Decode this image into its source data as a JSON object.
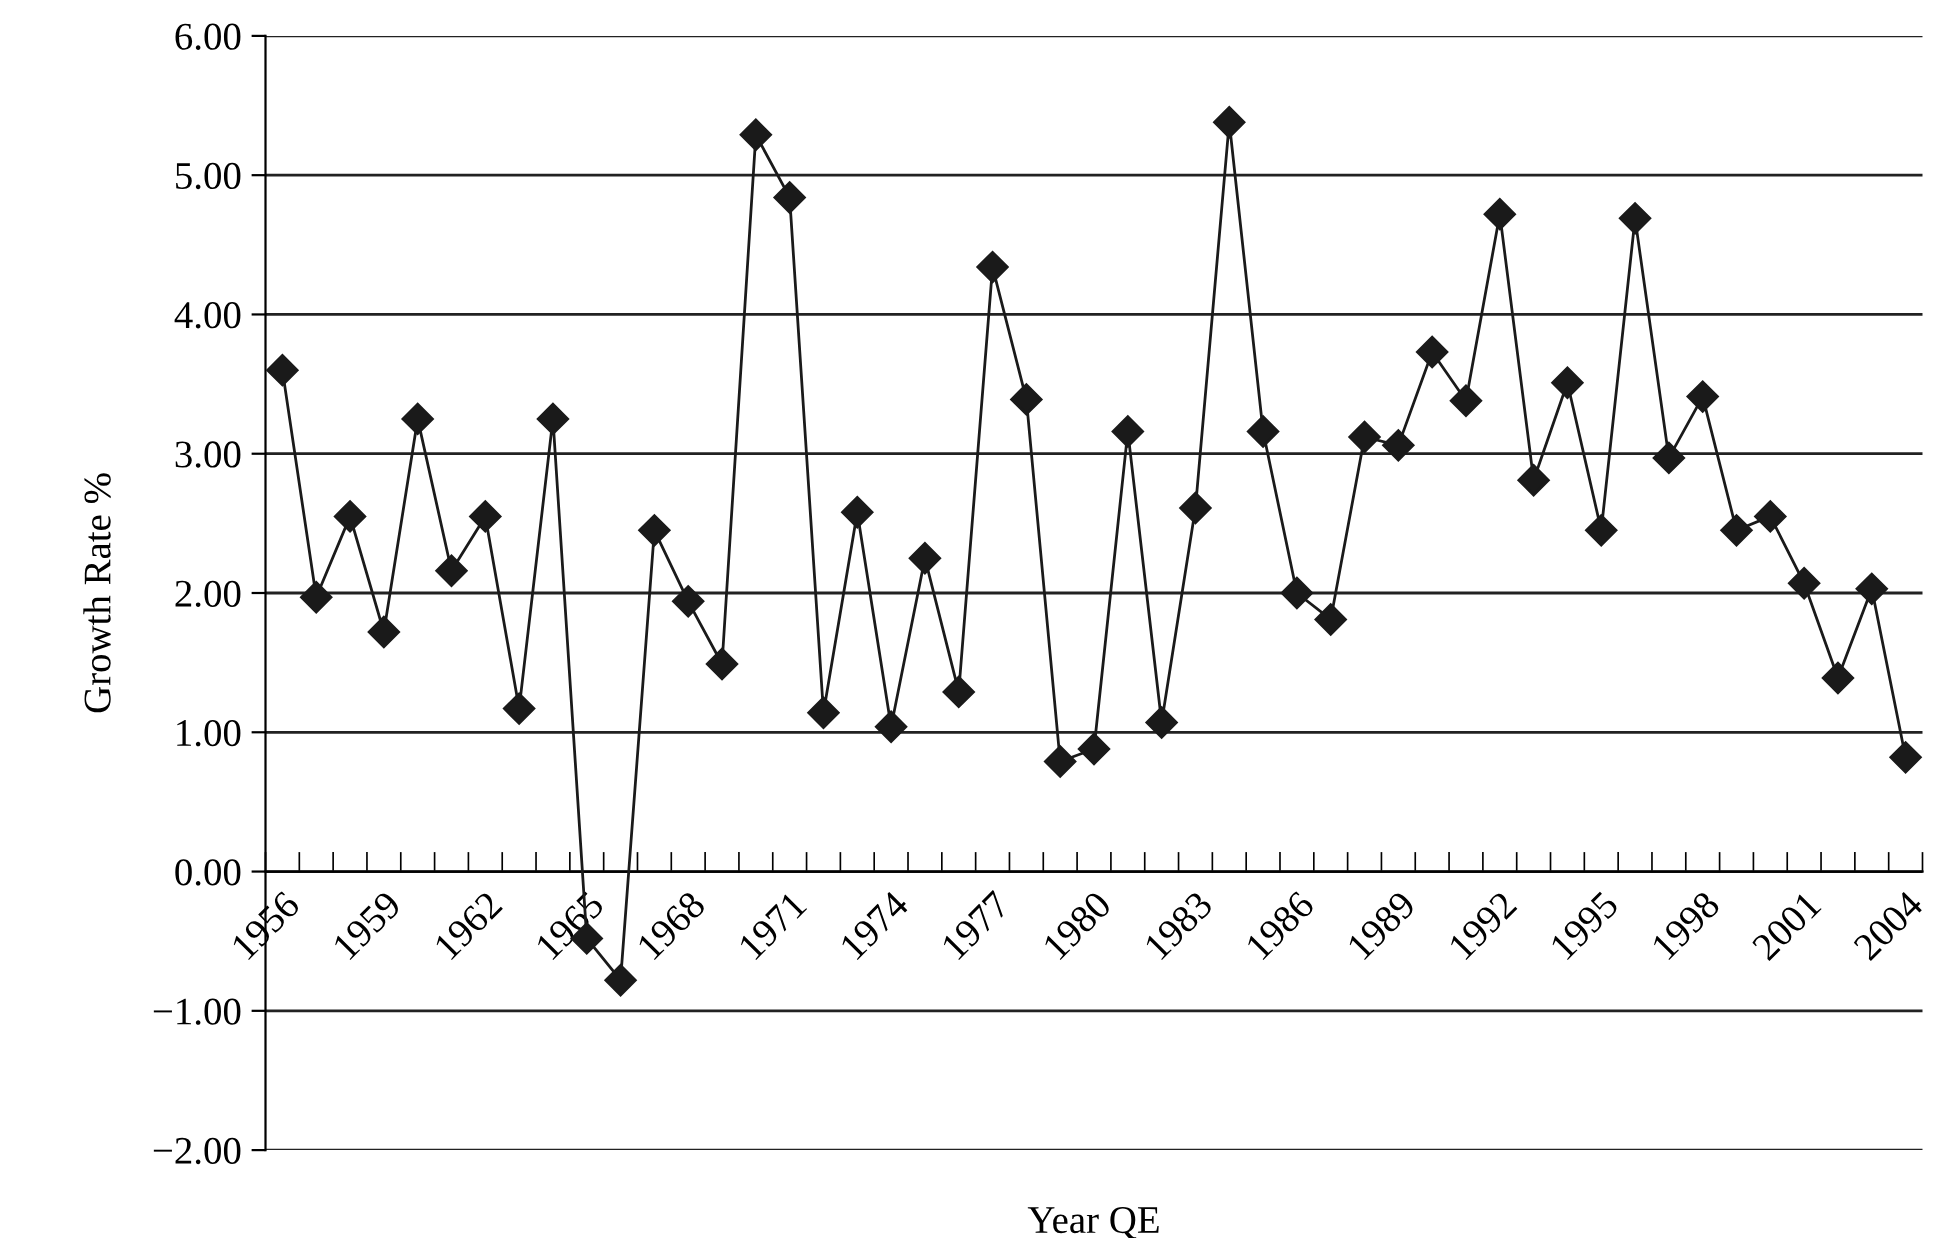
{
  "chart_data": {
    "type": "line",
    "xlabel": "Year QE",
    "ylabel": "Growth Rate %",
    "categories": [
      "1956",
      null,
      null,
      "1959",
      null,
      null,
      "1962",
      null,
      null,
      "1965",
      null,
      null,
      "1968",
      null,
      null,
      "1971",
      null,
      null,
      "1974",
      null,
      null,
      "1977",
      null,
      null,
      "1980",
      null,
      null,
      "1983",
      null,
      null,
      "1986",
      null,
      null,
      "1989",
      null,
      null,
      "1992",
      null,
      null,
      "1995",
      null,
      null,
      "1998",
      null,
      null,
      "2001",
      null,
      null,
      "2004"
    ],
    "series": [
      {
        "color": "#1a1a1a",
        "values": [
          3.6,
          1.97,
          2.55,
          1.72,
          3.25,
          2.16,
          2.55,
          1.17,
          3.25,
          -0.48,
          -0.78,
          2.45,
          1.94,
          1.49,
          5.29,
          4.84,
          1.14,
          2.58,
          1.04,
          2.25,
          1.29,
          4.34,
          3.39,
          0.79,
          0.88,
          3.16,
          1.07,
          2.61,
          5.38,
          3.16,
          2.0,
          1.81,
          3.12,
          3.06,
          3.73,
          3.38,
          4.72,
          2.81,
          3.51,
          2.45,
          4.69,
          2.97,
          3.41,
          2.45,
          2.55,
          2.07,
          1.39,
          2.03,
          0.82
        ]
      }
    ],
    "ylim": [
      -2,
      6
    ],
    "yticks": [
      {
        "value": -2,
        "label": "−2.00"
      },
      {
        "value": -1,
        "label": "−1.00"
      },
      {
        "value": 0,
        "label": "0.00"
      },
      {
        "value": 1,
        "label": "1.00"
      },
      {
        "value": 2,
        "label": "2.00"
      },
      {
        "value": 3,
        "label": "3.00"
      },
      {
        "value": 4,
        "label": "4.00"
      },
      {
        "value": 5,
        "label": "5.00"
      },
      {
        "value": 6,
        "label": "6.00"
      }
    ],
    "grid": "y",
    "marker": "diamond",
    "line_style": "solid"
  }
}
